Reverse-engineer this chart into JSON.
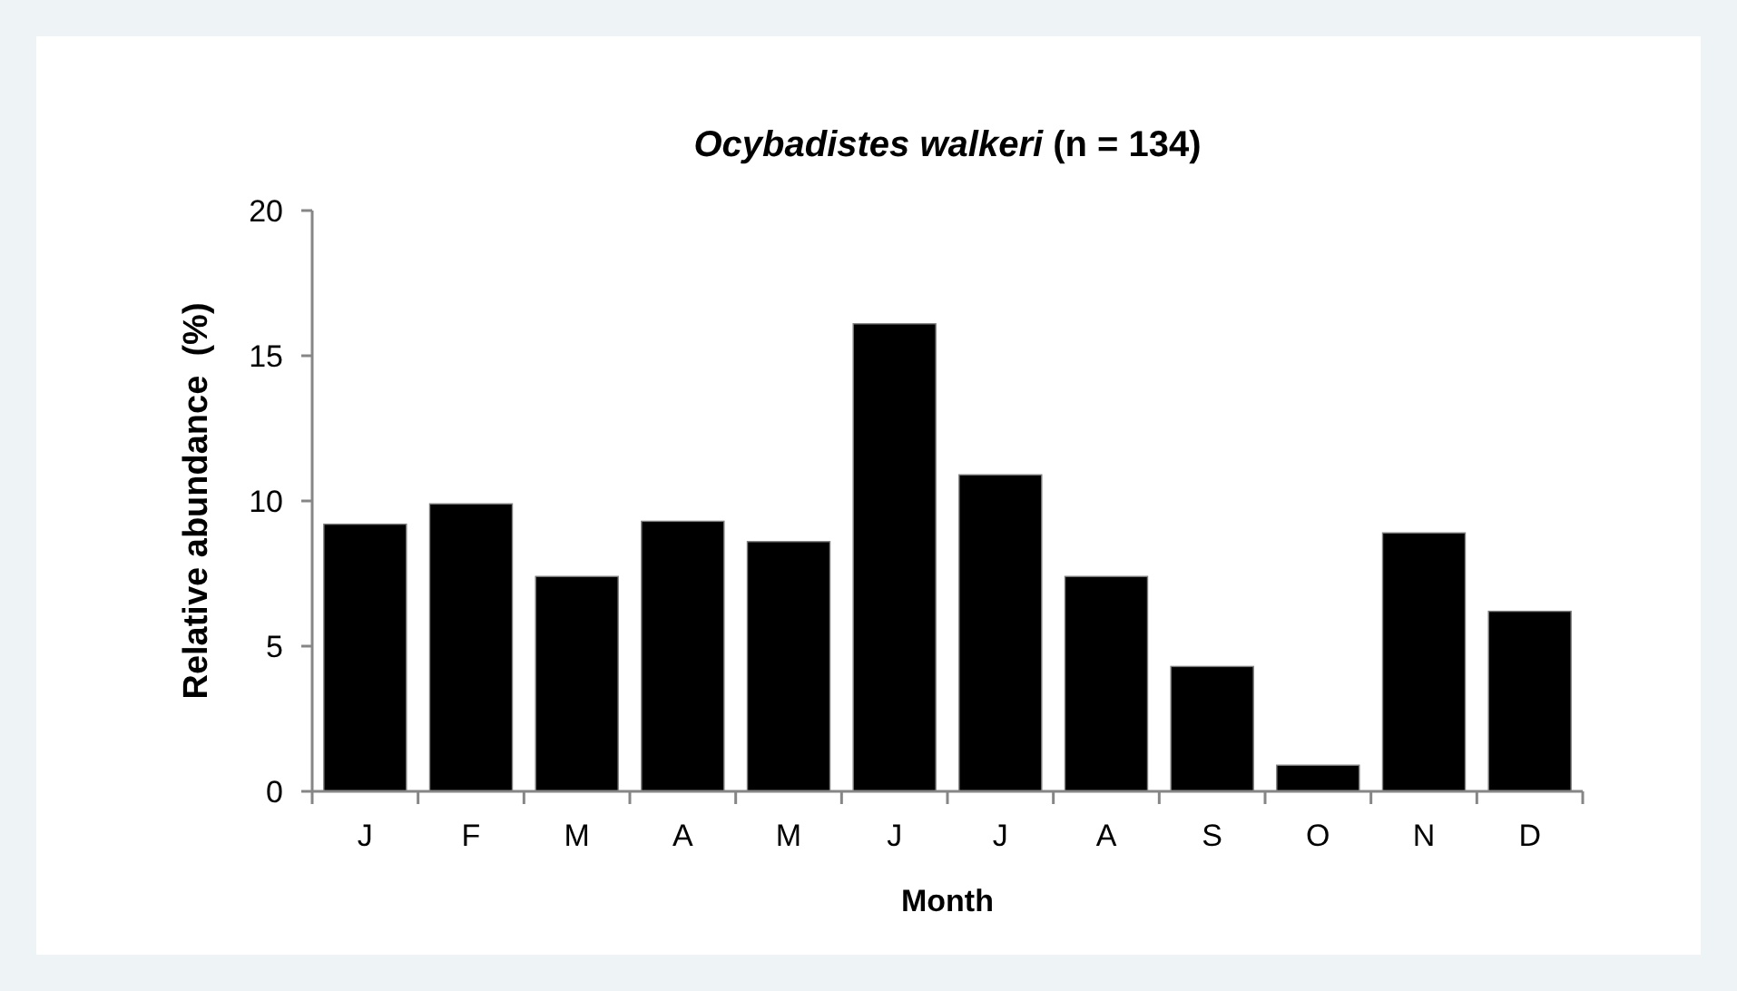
{
  "chart_data": {
    "type": "bar",
    "title": "Ocybadistes walkeri (n = 134)",
    "xlabel": "Month",
    "ylabel": "Relative abundance  (%)",
    "categories": [
      "J",
      "F",
      "M",
      "A",
      "M",
      "J",
      "J",
      "A",
      "S",
      "O",
      "N",
      "D"
    ],
    "values": [
      9.2,
      9.9,
      7.4,
      9.3,
      8.6,
      16.1,
      10.9,
      7.4,
      4.3,
      0.9,
      8.9,
      6.2
    ],
    "color": "#000000",
    "ylim": [
      0,
      20
    ],
    "yticks": [
      0,
      5,
      10,
      15,
      20
    ],
    "grid": false
  }
}
